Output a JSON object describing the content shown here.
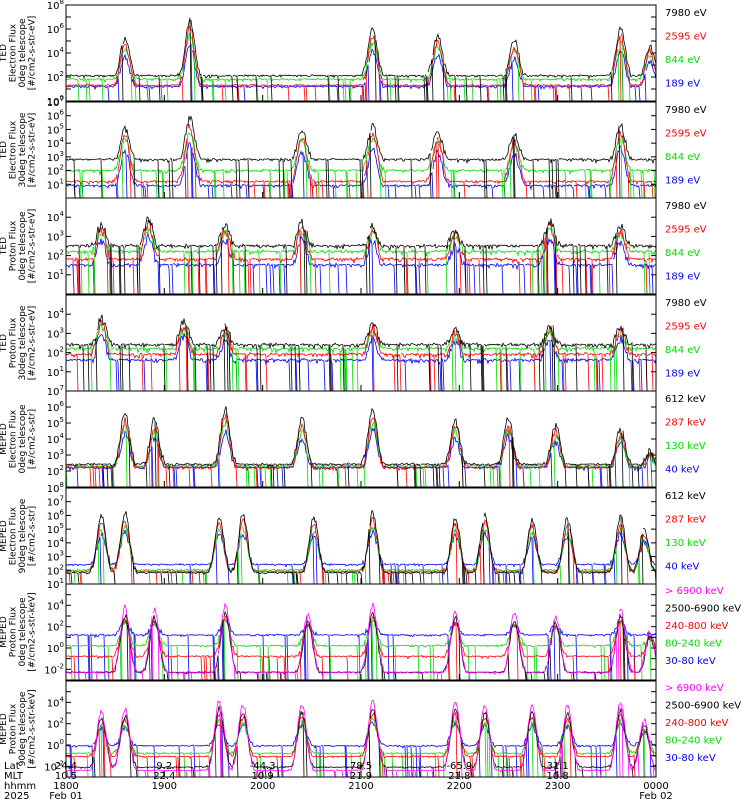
{
  "chart_data": {
    "type": "line",
    "x_range": [
      "1800",
      "0000"
    ],
    "panels": [
      {
        "ylabel_lines": [
          "TED",
          "Electron Flux",
          "0deg telescope",
          "[#/cm2-s-str-eV]"
        ],
        "ymin_exp": 0,
        "ymax_exp": 8,
        "tick_labels": [
          "10^0",
          "10^2",
          "10^4",
          "10^6",
          "10^8"
        ],
        "legend": [
          {
            "label": "7980 eV",
            "color": "#000000"
          },
          {
            "label": "2595 eV",
            "color": "#ff0000"
          },
          {
            "label": "844 eV",
            "color": "#00dd00"
          },
          {
            "label": "189 eV",
            "color": "#0000ff"
          }
        ],
        "base": [
          1.9,
          1.1,
          1.6,
          1.0
        ],
        "peaks": [
          [
            0.1,
            5.2
          ],
          [
            0.21,
            6.8
          ],
          [
            0.52,
            5.9
          ],
          [
            0.63,
            5.4
          ],
          [
            0.76,
            5.0
          ],
          [
            0.94,
            6.0
          ],
          [
            0.99,
            4.5
          ]
        ]
      },
      {
        "ylabel_lines": [
          "TED",
          "Electron Flux",
          "30deg telescope",
          "[#/cm2-s-str-eV]"
        ],
        "ymin_exp": 0,
        "ymax_exp": 7,
        "tick_labels": [
          "10^1",
          "10^2",
          "10^3",
          "10^4",
          "10^5",
          "10^6",
          "10^7"
        ],
        "legend": [
          {
            "label": "7980 eV",
            "color": "#000000"
          },
          {
            "label": "2595 eV",
            "color": "#ff0000"
          },
          {
            "label": "844 eV",
            "color": "#00dd00"
          },
          {
            "label": "189 eV",
            "color": "#0000ff"
          }
        ],
        "base": [
          2.6,
          1.0,
          1.8,
          0.7
        ],
        "peaks": [
          [
            0.1,
            5.0
          ],
          [
            0.21,
            5.8
          ],
          [
            0.4,
            4.9
          ],
          [
            0.52,
            5.2
          ],
          [
            0.63,
            4.8
          ],
          [
            0.76,
            4.6
          ],
          [
            0.94,
            5.3
          ]
        ]
      },
      {
        "ylabel_lines": [
          "TED",
          "Proton Flux",
          "0deg telescope",
          "[#/cm2-s-str-eV]"
        ],
        "ymin_exp": 0,
        "ymax_exp": 5,
        "tick_labels": [
          "10^1",
          "10^2",
          "10^3",
          "10^4"
        ],
        "legend": [
          {
            "label": "7980 eV",
            "color": "#000000"
          },
          {
            "label": "2595 eV",
            "color": "#ff0000"
          },
          {
            "label": "844 eV",
            "color": "#00dd00"
          },
          {
            "label": "189 eV",
            "color": "#0000ff"
          }
        ],
        "base": [
          2.3,
          1.6,
          2.0,
          1.3
        ],
        "peaks": [
          [
            0.06,
            3.6
          ],
          [
            0.14,
            3.9
          ],
          [
            0.27,
            3.6
          ],
          [
            0.4,
            3.7
          ],
          [
            0.52,
            3.5
          ],
          [
            0.66,
            3.3
          ],
          [
            0.82,
            3.8
          ],
          [
            0.94,
            3.5
          ]
        ]
      },
      {
        "ylabel_lines": [
          "TED",
          "Proton Flux",
          "30deg telescope",
          "[#/cm2-s-str-eV]"
        ],
        "ymin_exp": 0,
        "ymax_exp": 5,
        "tick_labels": [
          "10^1",
          "10^2",
          "10^3",
          "10^4"
        ],
        "legend": [
          {
            "label": "7980 eV",
            "color": "#000000"
          },
          {
            "label": "2595 eV",
            "color": "#ff0000"
          },
          {
            "label": "844 eV",
            "color": "#00dd00"
          },
          {
            "label": "189 eV",
            "color": "#0000ff"
          }
        ],
        "base": [
          2.2,
          1.7,
          2.0,
          1.4
        ],
        "peaks": [
          [
            0.06,
            3.8
          ],
          [
            0.2,
            3.7
          ],
          [
            0.27,
            3.3
          ],
          [
            0.52,
            3.5
          ],
          [
            0.66,
            3.2
          ],
          [
            0.82,
            3.5
          ],
          [
            0.94,
            3.4
          ]
        ]
      },
      {
        "ylabel_lines": [
          "MEPED",
          "Electron Flux",
          "0deg telescope",
          "[#/cm2-s-str]"
        ],
        "ymin_exp": 1,
        "ymax_exp": 7,
        "tick_labels": [
          "10^2",
          "10^3",
          "10^4",
          "10^5",
          "10^6",
          "10^7"
        ],
        "legend": [
          {
            "label": "612 keV",
            "color": "#000000"
          },
          {
            "label": "287 keV",
            "color": "#ff0000"
          },
          {
            "label": "130 keV",
            "color": "#00dd00"
          },
          {
            "label": "40 keV",
            "color": "#0000ff"
          }
        ],
        "base": [
          2.2,
          2.0,
          2.1,
          2.0
        ],
        "peaks": [
          [
            0.1,
            5.6
          ],
          [
            0.15,
            5.2
          ],
          [
            0.27,
            5.9
          ],
          [
            0.4,
            5.2
          ],
          [
            0.52,
            5.9
          ],
          [
            0.66,
            5.1
          ],
          [
            0.75,
            5.3
          ],
          [
            0.83,
            4.8
          ],
          [
            0.94,
            4.6
          ],
          [
            0.99,
            3.2
          ]
        ]
      },
      {
        "ylabel_lines": [
          "MEPED",
          "Electron Flux",
          "90deg telescope",
          "[#/cm2-s-str]"
        ],
        "ymin_exp": 1,
        "ymax_exp": 8,
        "tick_labels": [
          "10^1",
          "10^2",
          "10^3",
          "10^4",
          "10^5",
          "10^6",
          "10^7",
          "10^8"
        ],
        "legend": [
          {
            "label": "612 keV",
            "color": "#000000"
          },
          {
            "label": "287 keV",
            "color": "#ff0000"
          },
          {
            "label": "130 keV",
            "color": "#00dd00"
          },
          {
            "label": "40 keV",
            "color": "#0000ff"
          }
        ],
        "base": [
          1.6,
          1.7,
          1.8,
          2.2
        ],
        "peaks": [
          [
            0.06,
            6.0
          ],
          [
            0.1,
            6.2
          ],
          [
            0.26,
            5.9
          ],
          [
            0.3,
            6.1
          ],
          [
            0.42,
            5.8
          ],
          [
            0.52,
            6.2
          ],
          [
            0.66,
            5.9
          ],
          [
            0.71,
            6.0
          ],
          [
            0.79,
            5.7
          ],
          [
            0.85,
            5.8
          ],
          [
            0.94,
            6.0
          ],
          [
            0.98,
            5.0
          ]
        ]
      },
      {
        "ylabel_lines": [
          "MEPED",
          "Proton Flux",
          "0deg telescope",
          "[#/cm2-s-str-keV]"
        ],
        "ymin_exp": -3,
        "ymax_exp": 6,
        "tick_labels": [
          "10^-2",
          "10^0",
          "10^2",
          "10^4"
        ],
        "legend": [
          {
            "label": "> 6900 keV",
            "color": "#ff00ff"
          },
          {
            "label": "2500-6900 keV",
            "color": "#000000"
          },
          {
            "label": "240-800 keV",
            "color": "#ff0000"
          },
          {
            "label": "80-240 keV",
            "color": "#00dd00"
          },
          {
            "label": "30-80 keV",
            "color": "#0000ff"
          }
        ],
        "base": [
          -2.5,
          -2.5,
          -1.0,
          0.0,
          1.0
        ],
        "peaks": [
          [
            0.1,
            3.8
          ],
          [
            0.15,
            3.6
          ],
          [
            0.27,
            4.0
          ],
          [
            0.41,
            3.2
          ],
          [
            0.52,
            4.0
          ],
          [
            0.66,
            3.5
          ],
          [
            0.76,
            3.3
          ],
          [
            0.83,
            3.0
          ],
          [
            0.94,
            3.7
          ],
          [
            0.99,
            1.5
          ]
        ]
      },
      {
        "ylabel_lines": [
          "MEPED",
          "Proton Flux",
          "90deg telescope",
          "[#/cm2-s-str-keV]"
        ],
        "ymin_exp": -3,
        "ymax_exp": 6,
        "tick_labels": [
          "10^-2",
          "10^0",
          "10^2",
          "10^4"
        ],
        "legend": [
          {
            "label": "> 6900 keV",
            "color": "#ff00ff"
          },
          {
            "label": "2500-6900 keV",
            "color": "#000000"
          },
          {
            "label": "240-800 keV",
            "color": "#ff0000"
          },
          {
            "label": "80-240 keV",
            "color": "#00dd00"
          },
          {
            "label": "30-80 keV",
            "color": "#0000ff"
          }
        ],
        "base": [
          -2.6,
          -2.3,
          -1.3,
          -1.0,
          -0.3
        ],
        "peaks": [
          [
            0.06,
            3.2
          ],
          [
            0.1,
            3.4
          ],
          [
            0.26,
            4.2
          ],
          [
            0.3,
            3.8
          ],
          [
            0.4,
            3.8
          ],
          [
            0.52,
            4.3
          ],
          [
            0.66,
            4.2
          ],
          [
            0.71,
            3.8
          ],
          [
            0.79,
            3.7
          ],
          [
            0.85,
            3.6
          ],
          [
            0.94,
            4.0
          ],
          [
            0.98,
            2.5
          ]
        ]
      }
    ]
  },
  "footer": {
    "row_titles": [
      "Lat",
      "MLT",
      "hhmm",
      "2025"
    ],
    "columns": [
      {
        "lat": "24.4",
        "mlt": "10.5",
        "hhmm": "1800",
        "date": "Feb 01"
      },
      {
        "lat": "9.2",
        "mlt": "22.4",
        "hhmm": "1900",
        "date": ""
      },
      {
        "lat": "-44.3",
        "mlt": "10.9",
        "hhmm": "2000",
        "date": ""
      },
      {
        "lat": "78.5",
        "mlt": "21.9",
        "hhmm": "2100",
        "date": ""
      },
      {
        "lat": "-65.9",
        "mlt": "21.8",
        "hhmm": "2200",
        "date": ""
      },
      {
        "lat": "31.1",
        "mlt": "10.8",
        "hhmm": "2300",
        "date": ""
      },
      {
        "lat": "",
        "mlt": "",
        "hhmm": "0000",
        "date": "Feb 02"
      }
    ]
  }
}
